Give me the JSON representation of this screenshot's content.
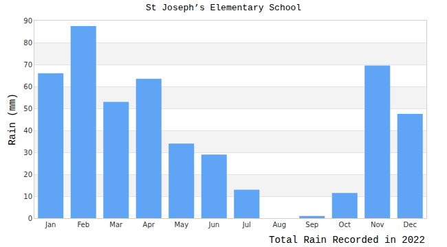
{
  "chart_data": {
    "type": "bar",
    "title": "St Joseph’s Elementary School",
    "x_label": "Total Rain Recorded in 2022",
    "y_label": "Rain (mm)",
    "categories": [
      "Jan",
      "Feb",
      "Mar",
      "Apr",
      "May",
      "Jun",
      "Jul",
      "Aug",
      "Sep",
      "Oct",
      "Nov",
      "Dec"
    ],
    "values": [
      66,
      87.5,
      53,
      63.5,
      34,
      29,
      13,
      0,
      1,
      11.5,
      69.5,
      47.5
    ],
    "color": "#60a5f5",
    "ylim": [
      0,
      90
    ],
    "yticks": [
      0,
      10,
      20,
      30,
      40,
      50,
      60,
      70,
      80,
      90
    ],
    "grid": true
  }
}
